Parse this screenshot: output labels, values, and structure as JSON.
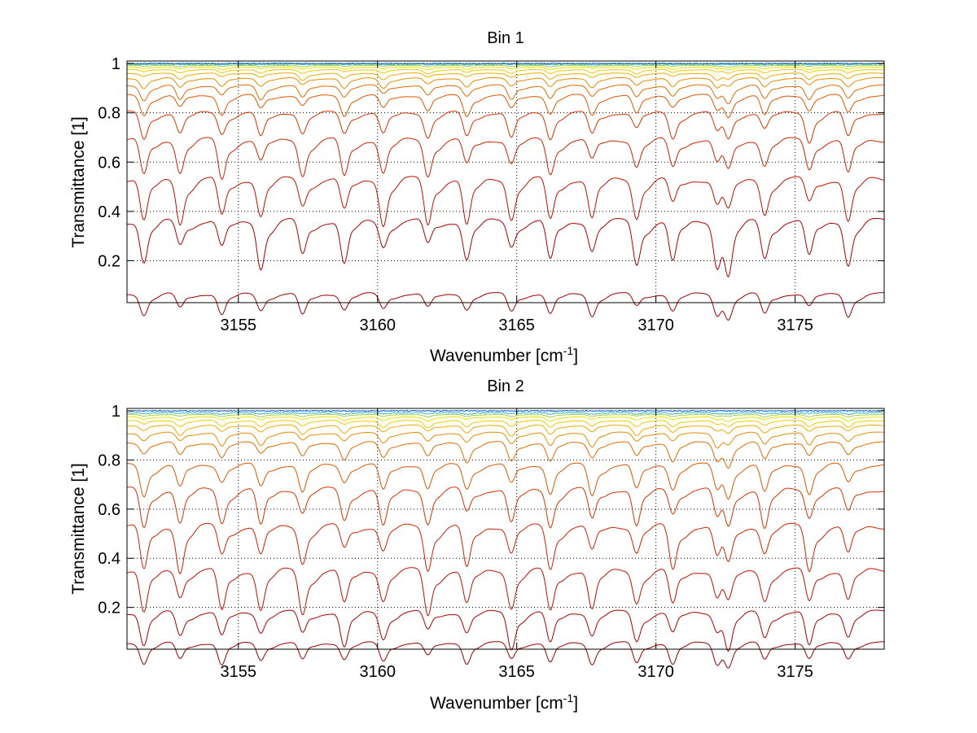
{
  "chart_data": [
    {
      "type": "line",
      "title": "Bin 1",
      "xlabel": "Wavenumber [cm",
      "xlabel_sup": "-1",
      "xlabel_end": "]",
      "ylabel": "Transmittance [1]",
      "xlim": [
        3151,
        3178.2
      ],
      "ylim": [
        0.03,
        1.01
      ],
      "xticks": [
        3155,
        3160,
        3165,
        3170,
        3175
      ],
      "yticks": [
        0.2,
        0.4,
        0.6,
        0.8,
        1
      ],
      "xtick_labels": [
        "3155",
        "3160",
        "3165",
        "3170",
        "3175"
      ],
      "ytick_labels": [
        "0.2",
        "0.4",
        "0.6",
        "0.8",
        "1"
      ],
      "grid": true,
      "series_baselines": [
        0.065,
        0.36,
        0.53,
        0.69,
        0.8,
        0.87,
        0.91,
        0.94,
        0.96,
        0.975,
        0.985,
        0.992,
        0.997,
        1.0
      ],
      "series_colors": [
        "#990000",
        "#aa0000",
        "#bb1100",
        "#cc2200",
        "#d43300",
        "#dd5500",
        "#e06a00",
        "#e68a00",
        "#ecaa00",
        "#f0c800",
        "#e8e000",
        "#a0d040",
        "#40b0c0",
        "#0060c0"
      ],
      "absorption_lines": [
        3151.6,
        3152.9,
        3154.4,
        3155.8,
        3157.3,
        3158.8,
        3160.2,
        3161.8,
        3163.2,
        3164.8,
        3166.2,
        3167.7,
        3169.3,
        3170.6,
        3172.2,
        3172.6,
        3173.9,
        3175.5,
        3176.9
      ]
    },
    {
      "type": "line",
      "title": "Bin 2",
      "xlabel": "Wavenumber [cm",
      "xlabel_sup": "-1",
      "xlabel_end": "]",
      "ylabel": "Transmittance [1]",
      "xlim": [
        3151,
        3178.2
      ],
      "ylim": [
        0.03,
        1.01
      ],
      "xticks": [
        3155,
        3160,
        3165,
        3170,
        3175
      ],
      "yticks": [
        0.2,
        0.4,
        0.6,
        0.8,
        1
      ],
      "xtick_labels": [
        "3155",
        "3160",
        "3165",
        "3170",
        "3175"
      ],
      "ytick_labels": [
        "0.2",
        "0.4",
        "0.6",
        "0.8",
        "1"
      ],
      "grid": true,
      "series_baselines": [
        0.055,
        0.18,
        0.35,
        0.53,
        0.68,
        0.78,
        0.87,
        0.91,
        0.94,
        0.96,
        0.975,
        0.985,
        0.992,
        1.0
      ],
      "series_colors": [
        "#990000",
        "#aa0000",
        "#bb1100",
        "#cc2200",
        "#d43300",
        "#dd5500",
        "#e06a00",
        "#e68a00",
        "#ecaa00",
        "#f0c800",
        "#e8e000",
        "#a0d040",
        "#40b0c0",
        "#0060c0"
      ],
      "absorption_lines": [
        3151.6,
        3152.9,
        3154.4,
        3155.8,
        3157.3,
        3158.8,
        3160.2,
        3161.8,
        3163.2,
        3164.8,
        3166.2,
        3167.7,
        3169.3,
        3170.6,
        3172.2,
        3172.6,
        3173.9,
        3175.5,
        3176.9
      ]
    }
  ]
}
